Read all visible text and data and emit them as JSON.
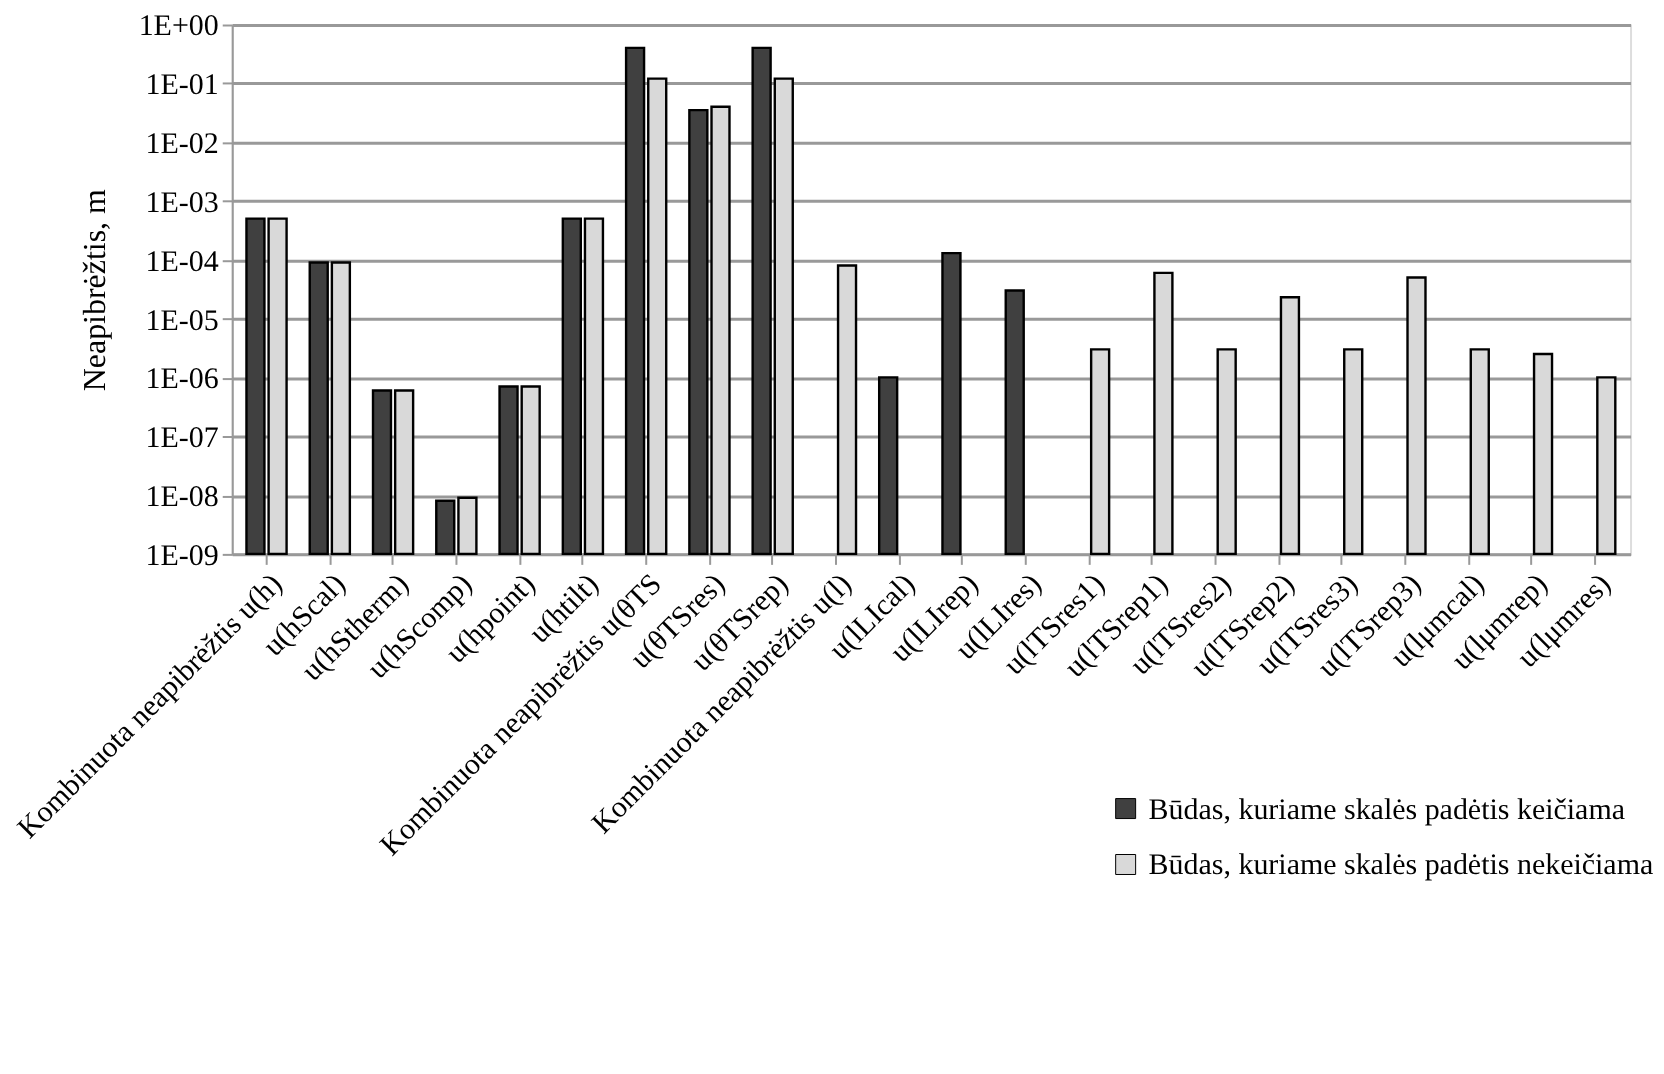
{
  "chart_data": {
    "type": "bar",
    "ylabel": "Neapibrėžtis, m",
    "categories": [
      "Kombinuota neapibrėžtis u(h)",
      "u(hScal)",
      "u(hStherm)",
      "u(hScomp)",
      "u(hpoint)",
      "u(htilt)",
      "Kombinuota neapibrėžtis u(θTS",
      "u(θTSres)",
      "u(θTSrep)",
      "Kombinuota neapibrėžtis u(l)",
      "u(lLIcal)",
      "u(lLIrep)",
      "u(lLIres)",
      "u(lTSres1)",
      "u(lTSrep1)",
      "u(lTSres2)",
      "u(lTSrep2)",
      "u(lTSres3)",
      "u(lTSrep3)",
      "u(lμmcal)",
      "u(lμmrep)",
      "u(lμmres)"
    ],
    "series": [
      {
        "name": "Būdas, kuriame skalės padėtis keičiama",
        "color": "#404040",
        "values": [
          0.0005,
          9e-05,
          6e-07,
          8e-09,
          7e-07,
          0.0005,
          0.4,
          0.035,
          0.4,
          null,
          1e-06,
          0.00013,
          3e-05,
          null,
          null,
          null,
          null,
          null,
          null,
          null,
          null,
          null
        ]
      },
      {
        "name": "Būdas, kuriame skalės padėtis nekeičiama",
        "color": "#d9d9d9",
        "values": [
          0.0005,
          9e-05,
          6e-07,
          9e-09,
          7e-07,
          0.0005,
          0.12,
          0.04,
          0.12,
          8e-05,
          null,
          null,
          null,
          3e-06,
          6e-05,
          3e-06,
          2.3e-05,
          3e-06,
          5e-05,
          3e-06,
          2.5e-06,
          1e-06
        ]
      }
    ],
    "log": true,
    "ylim": [
      1e-09,
      1
    ],
    "yticks": [
      {
        "value": 1e-09,
        "label": "1E-09"
      },
      {
        "value": 1e-08,
        "label": "1E-08"
      },
      {
        "value": 1e-07,
        "label": "1E-07"
      },
      {
        "value": 1e-06,
        "label": "1E-06"
      },
      {
        "value": 1e-05,
        "label": "1E-05"
      },
      {
        "value": 0.0001,
        "label": "1E-04"
      },
      {
        "value": 0.001,
        "label": "1E-03"
      },
      {
        "value": 0.01,
        "label": "1E-02"
      },
      {
        "value": 0.1,
        "label": "1E-01"
      },
      {
        "value": 1,
        "label": "1E+00"
      }
    ],
    "grid": "y",
    "legend": "bottom right"
  }
}
